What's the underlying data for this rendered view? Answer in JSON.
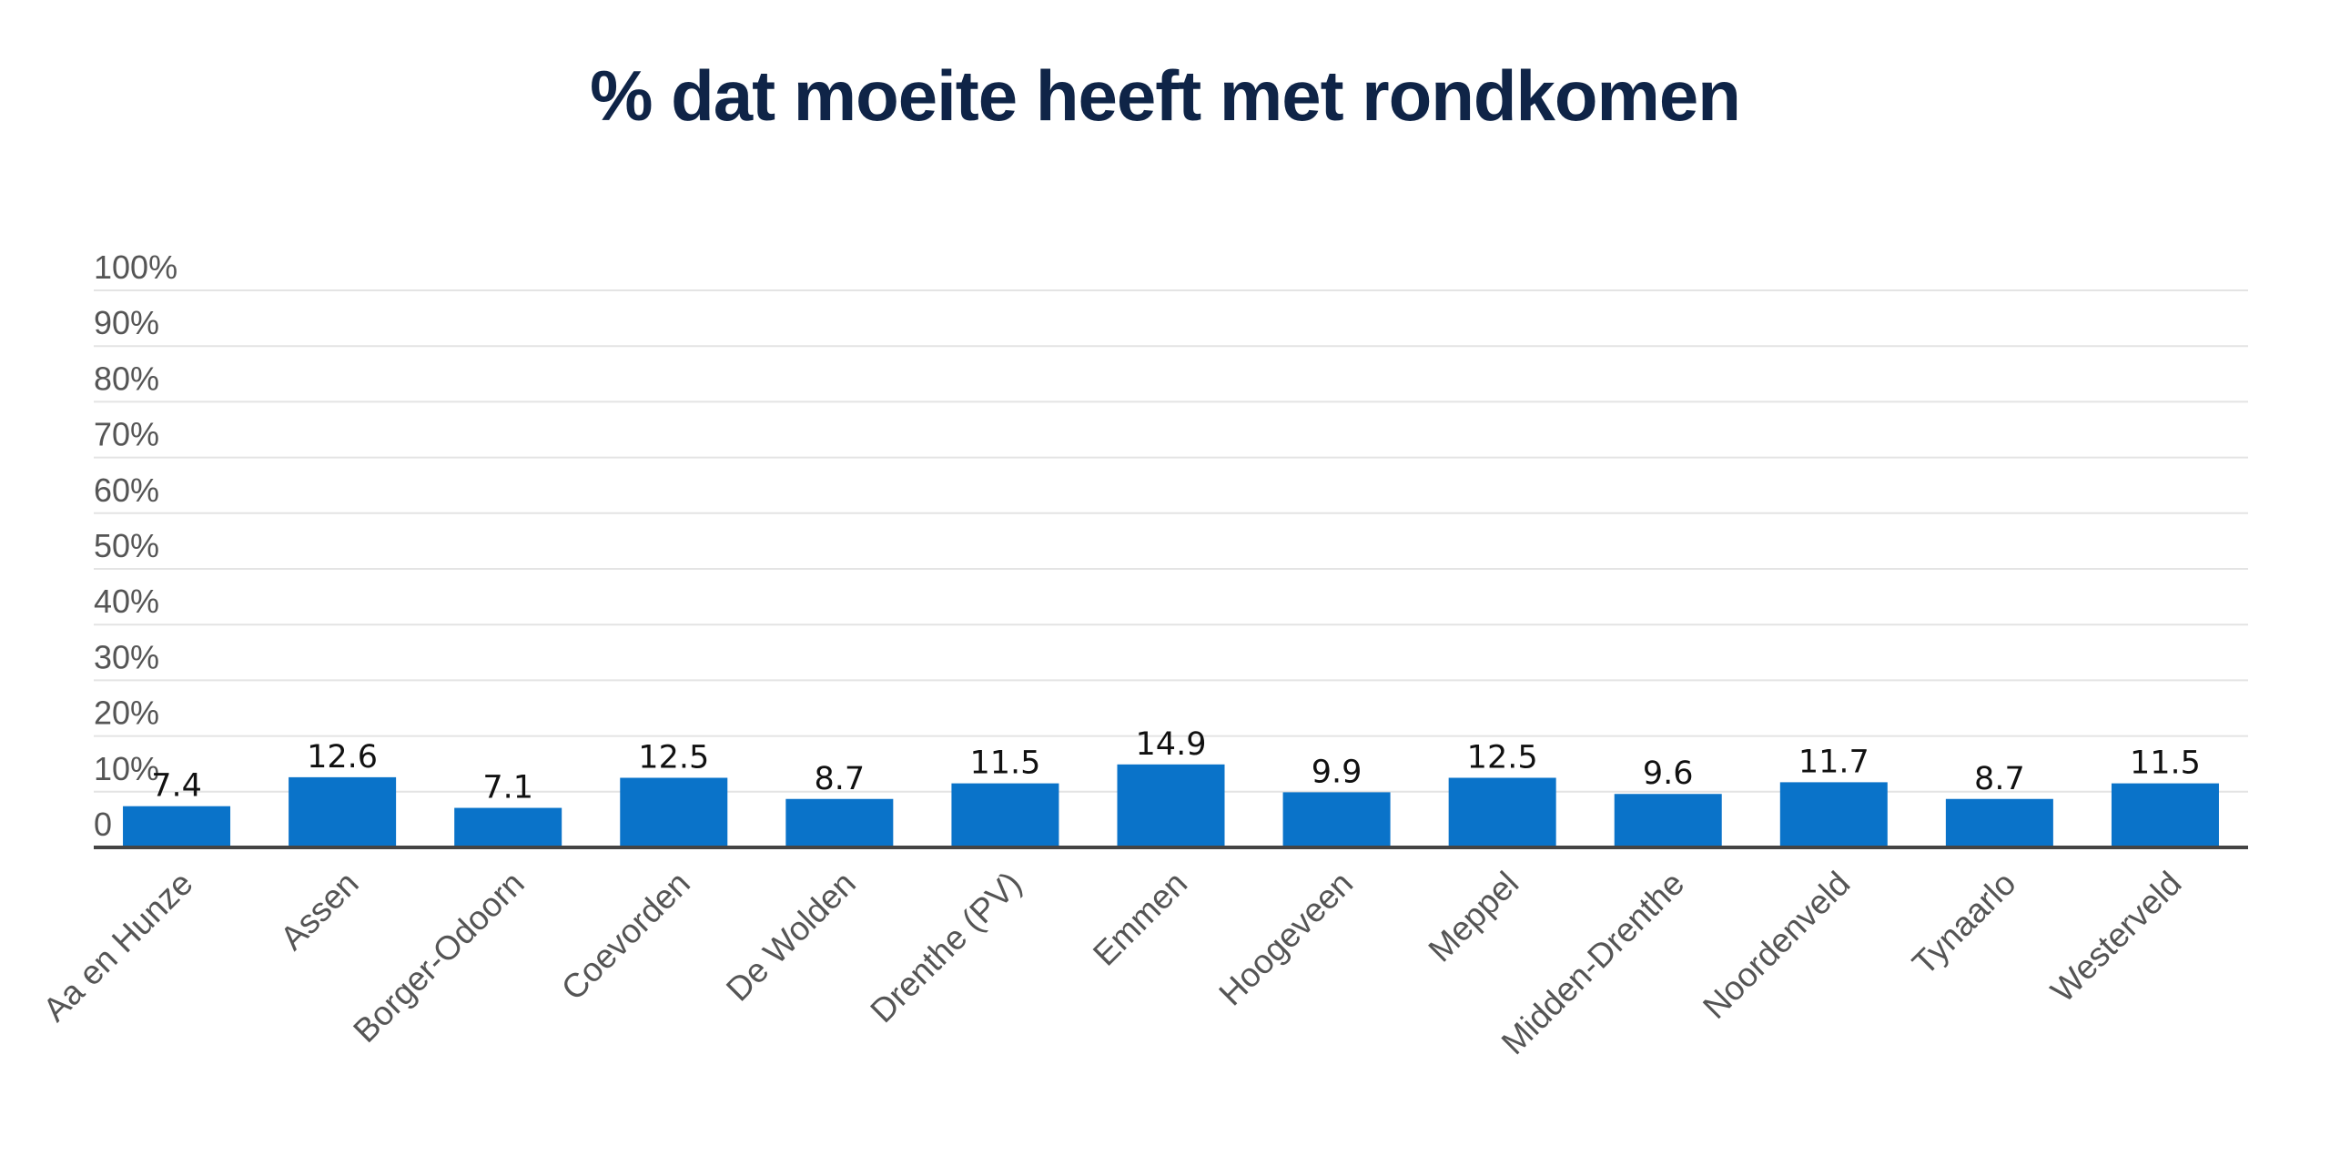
{
  "chart_data": {
    "type": "bar",
    "title": "% dat moeite heeft met rondkomen",
    "categories": [
      "Aa en Hunze",
      "Assen",
      "Borger-Odoorn",
      "Coevorden",
      "De Wolden",
      "Drenthe (PV)",
      "Emmen",
      "Hoogeveen",
      "Meppel",
      "Midden-Drenthe",
      "Noordenveld",
      "Tynaarlo",
      "Westerveld"
    ],
    "values": [
      7.4,
      12.6,
      7.1,
      12.5,
      8.7,
      11.5,
      14.9,
      9.9,
      12.5,
      9.6,
      11.7,
      8.7,
      11.5
    ],
    "data_labels": [
      "7.4",
      "12.6",
      "7.1",
      "12.5",
      "8.7",
      "11.5",
      "14.9",
      "9.9",
      "12.5",
      "9.6",
      "11.7",
      "8.7",
      "11.5"
    ],
    "ylim": [
      0,
      100
    ],
    "yticks": [
      0,
      10,
      20,
      30,
      40,
      50,
      60,
      70,
      80,
      90,
      100
    ],
    "ytick_labels": [
      "0",
      "10%",
      "20%",
      "30%",
      "40%",
      "50%",
      "60%",
      "70%",
      "80%",
      "90%",
      "100%"
    ],
    "xlabel": "",
    "ylabel": "",
    "grid": true,
    "bar_color": "#0a73c9",
    "title_color": "#0f2447"
  }
}
